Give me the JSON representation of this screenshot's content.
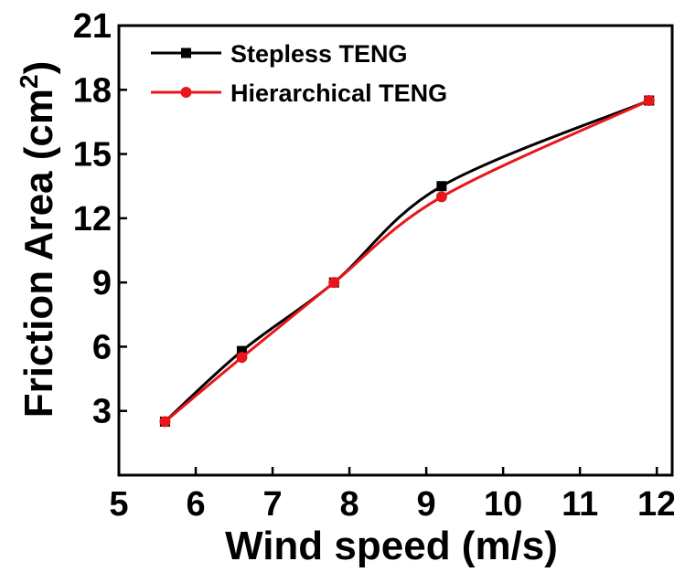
{
  "chart_data": {
    "type": "line",
    "title": "",
    "xlabel": "Wind speed (m/s)",
    "ylabel_main": "Friction Area (cm",
    "ylabel_sup": "2",
    "ylabel_close": ")",
    "xlim": [
      5,
      12.2
    ],
    "ylim": [
      0,
      21
    ],
    "xticks": [
      5,
      6,
      7,
      8,
      9,
      10,
      11,
      12
    ],
    "yticks": [
      3,
      6,
      9,
      12,
      15,
      18,
      21
    ],
    "grid": false,
    "legend_position": "top-left",
    "series": [
      {
        "name": "Stepless TENG",
        "color": "#000000",
        "marker": "square",
        "x": [
          5.6,
          6.6,
          7.8,
          9.2,
          11.9
        ],
        "y": [
          2.5,
          5.8,
          9.0,
          13.5,
          17.5
        ]
      },
      {
        "name": "Hierarchical TENG",
        "color": "#e8161b",
        "marker": "circle",
        "x": [
          5.6,
          6.6,
          7.8,
          9.2,
          11.9
        ],
        "y": [
          2.5,
          5.5,
          9.0,
          13.0,
          17.5
        ]
      }
    ]
  }
}
